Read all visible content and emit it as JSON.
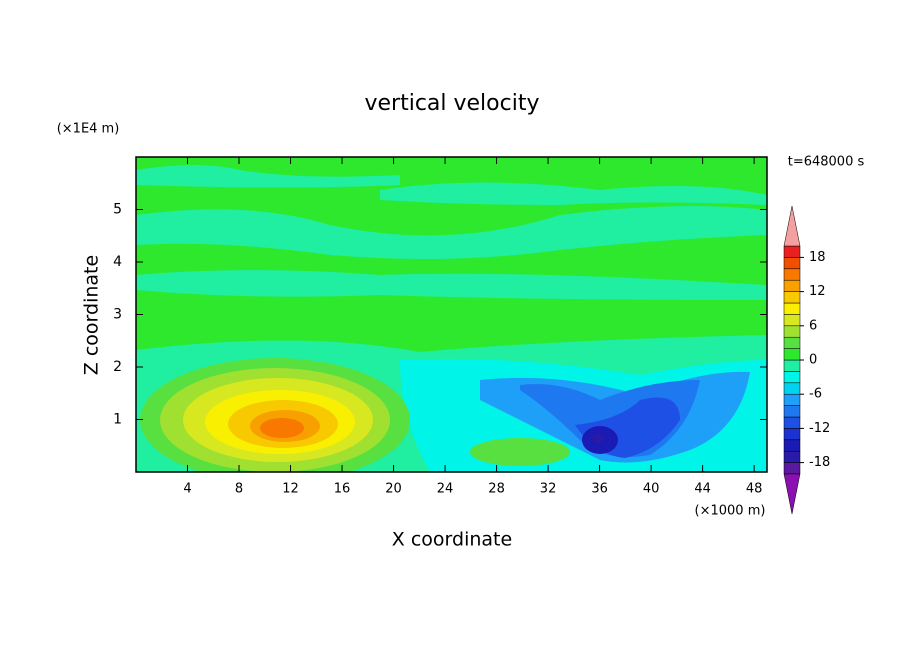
{
  "chart_data": {
    "type": "contour",
    "title": "vertical velocity",
    "xlabel": "X coordinate",
    "ylabel": "Z coordinate",
    "xunit": "(×1000 m)",
    "yunit": "(×1E4 m)",
    "time_label": "t=648000 s",
    "xlim": [
      0,
      49
    ],
    "xticks": [
      4,
      8,
      12,
      16,
      20,
      24,
      28,
      32,
      36,
      40,
      44,
      48
    ],
    "ylim": [
      0,
      6
    ],
    "yticks": [
      1,
      2,
      3,
      4,
      5
    ],
    "levels": [
      -20,
      -18,
      -16,
      -14,
      -12,
      -10,
      -8,
      -6,
      -4,
      -2,
      0,
      2,
      4,
      6,
      8,
      10,
      12,
      14,
      16,
      18,
      20
    ],
    "colors": [
      "#5a1aa0",
      "#2a1aa8",
      "#1a1ab4",
      "#1e32d2",
      "#1e50e6",
      "#1e78f0",
      "#1ea0f8",
      "#00d2f0",
      "#00f4e8",
      "#20eea0",
      "#2ee82e",
      "#58e040",
      "#a0e030",
      "#d8e820",
      "#f8f000",
      "#f8c800",
      "#f8a000",
      "#f87800",
      "#f05000",
      "#e82020"
    ],
    "extend_colors": [
      "#8a10b0",
      "#f4a0a0"
    ],
    "cbar_ticks": [
      -18,
      -12,
      -6,
      0,
      6,
      12,
      18
    ]
  }
}
